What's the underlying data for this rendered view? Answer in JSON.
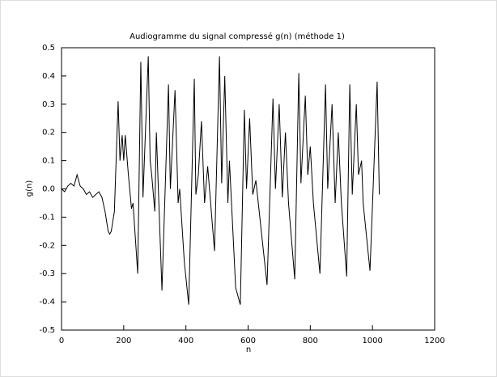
{
  "chart_data": {
    "type": "line",
    "title": "Audiogramme du signal compressé g(n) (méthode 1)",
    "xlabel": "n",
    "ylabel": "g(n)",
    "xlim": [
      0,
      1200
    ],
    "xticks": [
      0,
      200,
      400,
      600,
      800,
      1000,
      1200
    ],
    "ylim": [
      -0.5,
      0.5
    ],
    "yticks": [
      -0.5,
      -0.4,
      -0.3,
      -0.2,
      -0.1,
      {
        "value": 0,
        "label": "0.0"
      },
      0.1,
      0.2,
      0.3,
      0.4,
      0.5
    ],
    "series": [
      {
        "color": "#000000",
        "x": [
          0,
          10,
          20,
          30,
          40,
          50,
          60,
          70,
          80,
          90,
          100,
          110,
          120,
          130,
          140,
          150,
          155,
          160,
          170,
          182,
          188,
          195,
          200,
          205,
          215,
          225,
          230,
          245,
          255,
          262,
          279,
          285,
          290,
          300,
          305,
          323,
          344,
          350,
          365,
          375,
          380,
          395,
          409,
          427,
          432,
          440,
          450,
          460,
          470,
          492,
          508,
          515,
          525,
          535,
          540,
          560,
          575,
          588,
          595,
          605,
          615,
          625,
          661,
          680,
          688,
          700,
          710,
          720,
          730,
          750,
          763,
          770,
          784,
          792,
          800,
          810,
          831,
          849,
          856,
          870,
          880,
          890,
          900,
          917,
          927,
          935,
          948,
          955,
          965,
          970,
          992,
          1015,
          1022
        ],
        "values": [
          0.0,
          -0.01,
          0.01,
          0.02,
          0.01,
          0.05,
          0.01,
          0.0,
          -0.02,
          -0.01,
          -0.03,
          -0.02,
          -0.01,
          -0.03,
          -0.08,
          -0.15,
          -0.16,
          -0.15,
          -0.08,
          0.31,
          0.1,
          0.19,
          0.1,
          0.19,
          0.05,
          -0.07,
          -0.05,
          -0.3,
          0.45,
          -0.03,
          0.47,
          0.1,
          0.05,
          -0.08,
          0.2,
          -0.36,
          0.37,
          0.0,
          0.35,
          -0.05,
          0.0,
          -0.26,
          -0.41,
          0.39,
          -0.02,
          0.05,
          0.24,
          -0.05,
          0.08,
          -0.22,
          0.47,
          0.02,
          0.4,
          -0.05,
          0.1,
          -0.35,
          -0.41,
          0.28,
          0.0,
          0.25,
          -0.02,
          0.03,
          -0.34,
          0.32,
          0.0,
          0.3,
          -0.03,
          0.2,
          -0.05,
          -0.32,
          0.41,
          0.02,
          0.33,
          0.05,
          0.15,
          -0.05,
          -0.3,
          0.37,
          0.0,
          0.3,
          -0.05,
          0.2,
          -0.05,
          -0.31,
          0.37,
          -0.02,
          0.3,
          0.05,
          0.1,
          -0.05,
          -0.29,
          0.38,
          -0.02
        ]
      }
    ]
  }
}
